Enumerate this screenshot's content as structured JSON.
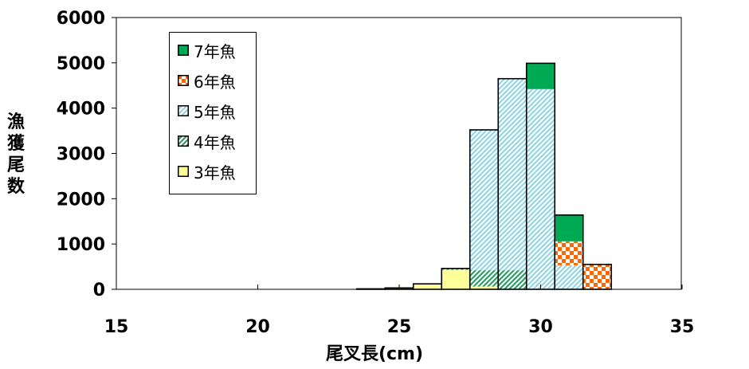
{
  "chart_data": {
    "type": "bar",
    "stacked": true,
    "xlabel": "尾叉長(cm)",
    "ylabel": "漁獲尾数",
    "x_ticks": [
      "15",
      "20",
      "25",
      "30",
      "35"
    ],
    "y_ticks": [
      "0",
      "1000",
      "2000",
      "3000",
      "4000",
      "5000",
      "6000"
    ],
    "xlim": [
      15,
      35
    ],
    "ylim": [
      0,
      6000
    ],
    "bin_width": 1,
    "bin_starts": [
      23.5,
      24.5,
      25.5,
      26.5,
      27.5,
      28.5,
      29.5,
      30.5,
      31.5
    ],
    "series": [
      {
        "name": "3年魚",
        "color": "#ffff99",
        "pattern": "solid",
        "values": [
          10,
          30,
          120,
          430,
          60,
          0,
          0,
          0,
          0
        ]
      },
      {
        "name": "4年魚",
        "color": "#339966",
        "pattern": "diag",
        "values": [
          0,
          0,
          0,
          30,
          360,
          420,
          0,
          0,
          0
        ]
      },
      {
        "name": "5年魚",
        "color": "#99dddd",
        "pattern": "diag-light",
        "values": [
          0,
          0,
          0,
          0,
          3100,
          4230,
          4420,
          530,
          0
        ]
      },
      {
        "name": "6年魚",
        "color": "#ff6600",
        "pattern": "checker",
        "values": [
          0,
          0,
          0,
          0,
          0,
          0,
          0,
          530,
          550
        ]
      },
      {
        "name": "7年魚",
        "color": "#00aa55",
        "pattern": "solid",
        "values": [
          0,
          0,
          0,
          0,
          0,
          0,
          570,
          580,
          0
        ]
      }
    ],
    "legend_position": "top-left",
    "grid": false
  }
}
